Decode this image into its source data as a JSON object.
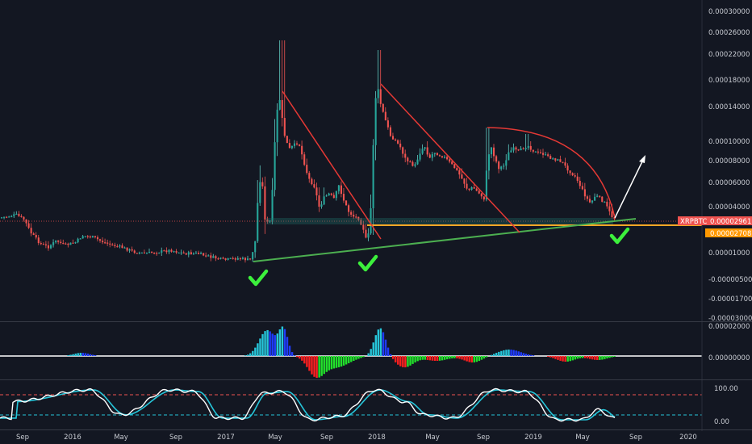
{
  "symbol": "XRPBTC",
  "last_price_label": "0.00002961",
  "support_label": "0.00002708",
  "colors": {
    "background": "#131722",
    "up": "#26a69a",
    "down": "#ef5350",
    "wick_up": "#5fc8c0",
    "trendline": "#e53935",
    "support": "#ffa726",
    "uptrend": "#4caf50",
    "check": "#3cf03c",
    "arrow": "#ffffff",
    "hist_up_strong": "#1f3cff",
    "hist_up": "#26c6da",
    "hist_down_strong": "#ff1f1f",
    "hist_down": "#22e02b",
    "stoch_k": "#ffffff",
    "stoch_d": "#26c6da",
    "stoch_upper": "#ef5350",
    "stoch_lower": "#26c6da",
    "last_price_bg": "#ef5350",
    "support_bg": "#ff9800"
  },
  "chart_data": [
    {
      "type": "candlestick",
      "symbol": "XRPBTC",
      "y_axis_ticks": [
        "0.00030000",
        "0.00026000",
        "0.00022000",
        "0.00018000",
        "0.00014000",
        "0.00010000",
        "0.00008000",
        "0.00006000",
        "0.00004000",
        "0.00002000",
        "0.00001000",
        "-0.00000500",
        "-0.00001700",
        "-0.00003000"
      ],
      "x_axis_ticks": [
        "Sep",
        "2016",
        "May",
        "Sep",
        "2017",
        "May",
        "Sep",
        "2018",
        "May",
        "Sep",
        "2019",
        "May",
        "Sep",
        "2020"
      ],
      "series": [
        {
          "name": "XRPBTC",
          "description": "weekly price path",
          "points": [
            [
              "2015-08",
              3e-05
            ],
            [
              "2015-10",
              2.6e-05
            ],
            [
              "2015-12",
              1.6e-05
            ],
            [
              "2016-02",
              1.8e-05
            ],
            [
              "2016-04",
              1.7e-05
            ],
            [
              "2016-06",
              1.4e-05
            ],
            [
              "2016-08",
              1.3e-05
            ],
            [
              "2016-10",
              1.2e-05
            ],
            [
              "2016-12",
              9e-06
            ],
            [
              "2017-02",
              7e-06
            ],
            [
              "2017-03",
              4e-05
            ],
            [
              "2017-04",
              3e-05
            ],
            [
              "2017-05",
              0.00014
            ],
            [
              "2017-05",
              0.00016
            ],
            [
              "2017-06",
              0.00011
            ],
            [
              "2017-07",
              8e-05
            ],
            [
              "2017-08",
              4e-05
            ],
            [
              "2017-09",
              4e-05
            ],
            [
              "2017-10",
              3.8e-05
            ],
            [
              "2017-11",
              2.4e-05
            ],
            [
              "2017-12",
              3e-05
            ],
            [
              "2018-01",
              0.00017
            ],
            [
              "2018-02",
              0.0001
            ],
            [
              "2018-03",
              8e-05
            ],
            [
              "2018-04",
              9e-05
            ],
            [
              "2018-05",
              8e-05
            ],
            [
              "2018-06",
              7e-05
            ],
            [
              "2018-07",
              6e-05
            ],
            [
              "2018-08",
              4.5e-05
            ],
            [
              "2018-09",
              8.5e-05
            ],
            [
              "2018-10",
              7.5e-05
            ],
            [
              "2018-11",
              9.5e-05
            ],
            [
              "2018-12",
              0.0001
            ],
            [
              "2019-01",
              9e-05
            ],
            [
              "2019-02",
              8.5e-05
            ],
            [
              "2019-03",
              8e-05
            ],
            [
              "2019-04",
              6.5e-05
            ],
            [
              "2019-05",
              4.5e-05
            ],
            [
              "2019-06",
              4e-05
            ],
            [
              "2019-07",
              3.5e-05
            ],
            [
              "2019-08",
              2.961e-05
            ]
          ]
        }
      ]
    },
    {
      "type": "bar",
      "name": "momentum histogram",
      "y_axis_ticks": [
        "0.00002000",
        "0.00000000"
      ]
    },
    {
      "type": "line",
      "name": "stochastic oscillator",
      "y_axis_ticks": [
        "100.00",
        "0.00"
      ],
      "levels": [
        80,
        20
      ]
    }
  ]
}
